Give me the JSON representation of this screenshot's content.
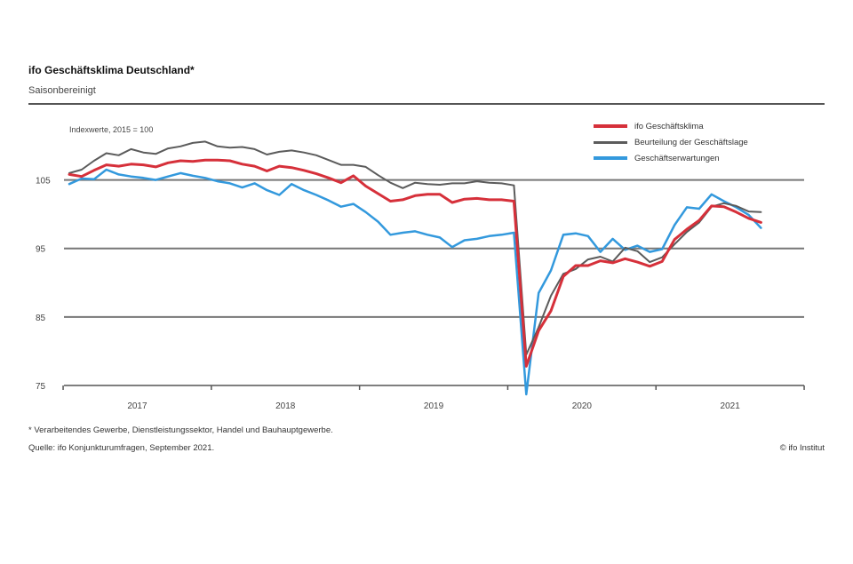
{
  "header": {
    "title": "ifo Geschäftsklima Deutschland*",
    "subtitle": "Saisonbereinigt"
  },
  "footer": {
    "footnote": "* Verarbeitendes Gewerbe, Dienstleistungssektor, Handel und Bauhauptgewerbe.",
    "source": "Quelle: ifo Konjunkturumfragen, September 2021.",
    "copyright": "© ifo Institut"
  },
  "colors": {
    "klima": "#d6303a",
    "lage": "#5b5b5b",
    "erwartungen": "#3399dd",
    "grid": "#777777",
    "axis": "#555555"
  },
  "chart_data": {
    "type": "line",
    "unit_label": "Indexwerte, 2015 = 100",
    "ylim": [
      75,
      110
    ],
    "yticks": [
      75,
      85,
      95,
      105
    ],
    "grid": true,
    "legend_position": "top-right",
    "x_start": "2017-01",
    "x_end": "2021-09",
    "xticks": [
      "2017",
      "2018",
      "2019",
      "2020",
      "2021"
    ],
    "x": [
      "2017-01",
      "2017-02",
      "2017-03",
      "2017-04",
      "2017-05",
      "2017-06",
      "2017-07",
      "2017-08",
      "2017-09",
      "2017-10",
      "2017-11",
      "2017-12",
      "2018-01",
      "2018-02",
      "2018-03",
      "2018-04",
      "2018-05",
      "2018-06",
      "2018-07",
      "2018-08",
      "2018-09",
      "2018-10",
      "2018-11",
      "2018-12",
      "2019-01",
      "2019-02",
      "2019-03",
      "2019-04",
      "2019-05",
      "2019-06",
      "2019-07",
      "2019-08",
      "2019-09",
      "2019-10",
      "2019-11",
      "2019-12",
      "2020-01",
      "2020-02",
      "2020-03",
      "2020-04",
      "2020-05",
      "2020-06",
      "2020-07",
      "2020-08",
      "2020-09",
      "2020-10",
      "2020-11",
      "2020-12",
      "2021-01",
      "2021-02",
      "2021-03",
      "2021-04",
      "2021-05",
      "2021-06",
      "2021-07",
      "2021-08",
      "2021-09"
    ],
    "series": [
      {
        "name": "ifo Geschäftsklima",
        "color": "#d6303a",
        "values": [
          105.8,
          105.5,
          106.4,
          107.2,
          107.0,
          107.3,
          107.2,
          106.9,
          107.5,
          107.8,
          107.7,
          107.9,
          107.9,
          107.8,
          107.3,
          107.0,
          106.3,
          107.0,
          106.8,
          106.4,
          105.9,
          105.3,
          104.6,
          105.6,
          104.1,
          103.0,
          101.9,
          102.1,
          102.7,
          102.9,
          102.9,
          101.7,
          102.2,
          102.3,
          102.1,
          102.1,
          101.9,
          77.8,
          83.0,
          85.9,
          90.9,
          92.5,
          92.5,
          93.2,
          92.9,
          93.5,
          93.0,
          92.4,
          93.1,
          96.3,
          97.8,
          99.1,
          101.2,
          101.1,
          100.3,
          99.4,
          98.8
        ],
        "line_width": 3
      },
      {
        "name": "Beurteilung der Geschäftslage",
        "color": "#5b5b5b",
        "values": [
          106.0,
          106.5,
          107.8,
          108.9,
          108.6,
          109.5,
          109.0,
          108.8,
          109.6,
          109.9,
          110.4,
          110.6,
          109.9,
          109.7,
          109.8,
          109.5,
          108.7,
          109.1,
          109.3,
          109.0,
          108.6,
          107.9,
          107.2,
          107.2,
          106.9,
          105.7,
          104.6,
          103.8,
          104.6,
          104.4,
          104.3,
          104.5,
          104.5,
          104.8,
          104.6,
          104.5,
          104.2,
          79.5,
          83.5,
          88.1,
          91.3,
          92.0,
          93.4,
          93.8,
          93.1,
          95.1,
          94.6,
          93.0,
          93.7,
          95.6,
          97.4,
          98.8,
          101.1,
          101.6,
          101.2,
          100.4,
          100.3
        ],
        "line_width": 2
      },
      {
        "name": "Geschäftserwartungen",
        "color": "#3399dd",
        "values": [
          104.4,
          105.2,
          105.1,
          106.5,
          105.8,
          105.5,
          105.3,
          105.0,
          105.5,
          106.0,
          105.6,
          105.3,
          104.8,
          104.5,
          103.9,
          104.5,
          103.5,
          102.8,
          104.4,
          103.5,
          102.8,
          102.0,
          101.1,
          101.5,
          100.3,
          98.9,
          97.0,
          97.3,
          97.5,
          97.0,
          96.6,
          95.2,
          96.2,
          96.4,
          96.8,
          97.0,
          97.3,
          73.7,
          88.5,
          91.8,
          97.0,
          97.2,
          96.8,
          94.5,
          96.4,
          94.8,
          95.4,
          94.5,
          94.9,
          98.4,
          101.0,
          100.8,
          102.9,
          101.9,
          101.0,
          99.9,
          98.0
        ],
        "line_width": 2.5
      }
    ]
  }
}
